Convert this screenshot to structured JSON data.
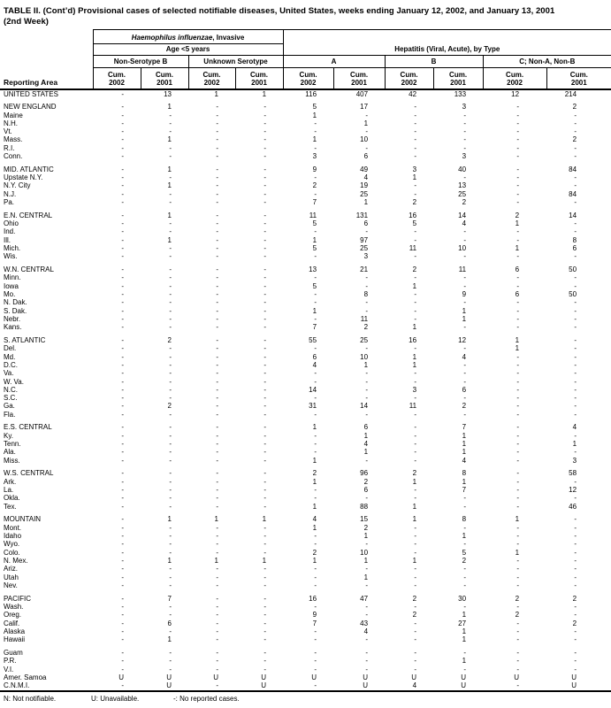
{
  "title": {
    "line1": "TABLE II. (Cont’d) Provisional cases of selected notifiable diseases, United States, weeks ending January 12, 2002, and January 13, 2001",
    "line2": "(2nd Week)"
  },
  "header": {
    "reporting_area": "Reporting Area",
    "haemophilus_italic": "Haemophilus influenzae",
    "haemophilus_rest": ", Invasive",
    "age_group": "Age <5 years",
    "hepatitis": "Hepatitis (Viral, Acute), by Type",
    "subgroups": [
      "Non-Serotype B",
      "Unknown Serotype",
      "A",
      "B",
      "C; Non-A, Non-B"
    ],
    "cum_label": "Cum.",
    "year_columns": [
      "2002",
      "2001",
      "2002",
      "2001",
      "2002",
      "2001",
      "2002",
      "2001",
      "2002",
      "2001"
    ]
  },
  "groups": [
    {
      "rows": [
        {
          "label": "UNITED STATES",
          "values": [
            "-",
            "13",
            "1",
            "1",
            "116",
            "407",
            "42",
            "133",
            "12",
            "214"
          ]
        }
      ]
    },
    {
      "rows": [
        {
          "label": "NEW ENGLAND",
          "values": [
            "-",
            "1",
            "-",
            "-",
            "5",
            "17",
            "-",
            "3",
            "-",
            "2"
          ]
        },
        {
          "label": "Maine",
          "values": [
            "-",
            "-",
            "-",
            "-",
            "1",
            "-",
            "-",
            "-",
            "-",
            "-"
          ]
        },
        {
          "label": "N.H.",
          "values": [
            "-",
            "-",
            "-",
            "-",
            "-",
            "1",
            "-",
            "-",
            "-",
            "-"
          ]
        },
        {
          "label": "Vt.",
          "values": [
            "-",
            "-",
            "-",
            "-",
            "-",
            "-",
            "-",
            "-",
            "-",
            "-"
          ]
        },
        {
          "label": "Mass.",
          "values": [
            "-",
            "1",
            "-",
            "-",
            "1",
            "10",
            "-",
            "-",
            "-",
            "2"
          ]
        },
        {
          "label": "R.I.",
          "values": [
            "-",
            "-",
            "-",
            "-",
            "-",
            "-",
            "-",
            "-",
            "-",
            "-"
          ]
        },
        {
          "label": "Conn.",
          "values": [
            "-",
            "-",
            "-",
            "-",
            "3",
            "6",
            "-",
            "3",
            "-",
            "-"
          ]
        }
      ]
    },
    {
      "rows": [
        {
          "label": "MID. ATLANTIC",
          "values": [
            "-",
            "1",
            "-",
            "-",
            "9",
            "49",
            "3",
            "40",
            "-",
            "84"
          ]
        },
        {
          "label": "Upstate N.Y.",
          "values": [
            "-",
            "-",
            "-",
            "-",
            "-",
            "4",
            "1",
            "-",
            "-",
            "-"
          ]
        },
        {
          "label": "N.Y. City",
          "values": [
            "-",
            "1",
            "-",
            "-",
            "2",
            "19",
            "-",
            "13",
            "-",
            "-"
          ]
        },
        {
          "label": "N.J.",
          "values": [
            "-",
            "-",
            "-",
            "-",
            "-",
            "25",
            "-",
            "25",
            "-",
            "84"
          ]
        },
        {
          "label": "Pa.",
          "values": [
            "-",
            "-",
            "-",
            "-",
            "7",
            "1",
            "2",
            "2",
            "-",
            "-"
          ]
        }
      ]
    },
    {
      "rows": [
        {
          "label": "E.N. CENTRAL",
          "values": [
            "-",
            "1",
            "-",
            "-",
            "11",
            "131",
            "16",
            "14",
            "2",
            "14"
          ]
        },
        {
          "label": "Ohio",
          "values": [
            "-",
            "-",
            "-",
            "-",
            "5",
            "6",
            "5",
            "4",
            "1",
            "-"
          ]
        },
        {
          "label": "Ind.",
          "values": [
            "-",
            "-",
            "-",
            "-",
            "-",
            "-",
            "-",
            "-",
            "-",
            "-"
          ]
        },
        {
          "label": "Ill.",
          "values": [
            "-",
            "1",
            "-",
            "-",
            "1",
            "97",
            "-",
            "-",
            "-",
            "8"
          ]
        },
        {
          "label": "Mich.",
          "values": [
            "-",
            "-",
            "-",
            "-",
            "5",
            "25",
            "11",
            "10",
            "1",
            "6"
          ]
        },
        {
          "label": "Wis.",
          "values": [
            "-",
            "-",
            "-",
            "-",
            "-",
            "3",
            "-",
            "-",
            "-",
            "-"
          ]
        }
      ]
    },
    {
      "rows": [
        {
          "label": "W.N. CENTRAL",
          "values": [
            "-",
            "-",
            "-",
            "-",
            "13",
            "21",
            "2",
            "11",
            "6",
            "50"
          ]
        },
        {
          "label": "Minn.",
          "values": [
            "-",
            "-",
            "-",
            "-",
            "-",
            "-",
            "-",
            "-",
            "-",
            "-"
          ]
        },
        {
          "label": "Iowa",
          "values": [
            "-",
            "-",
            "-",
            "-",
            "5",
            "-",
            "1",
            "-",
            "-",
            "-"
          ]
        },
        {
          "label": "Mo.",
          "values": [
            "-",
            "-",
            "-",
            "-",
            "-",
            "8",
            "-",
            "9",
            "6",
            "50"
          ]
        },
        {
          "label": "N. Dak.",
          "values": [
            "-",
            "-",
            "-",
            "-",
            "-",
            "-",
            "-",
            "-",
            "-",
            "-"
          ]
        },
        {
          "label": "S. Dak.",
          "values": [
            "-",
            "-",
            "-",
            "-",
            "1",
            "-",
            "-",
            "1",
            "-",
            "-"
          ]
        },
        {
          "label": "Nebr.",
          "values": [
            "-",
            "-",
            "-",
            "-",
            "-",
            "11",
            "-",
            "1",
            "-",
            "-"
          ]
        },
        {
          "label": "Kans.",
          "values": [
            "-",
            "-",
            "-",
            "-",
            "7",
            "2",
            "1",
            "-",
            "-",
            "-"
          ]
        }
      ]
    },
    {
      "rows": [
        {
          "label": "S. ATLANTIC",
          "values": [
            "-",
            "2",
            "-",
            "-",
            "55",
            "25",
            "16",
            "12",
            "1",
            "-"
          ]
        },
        {
          "label": "Del.",
          "values": [
            "-",
            "-",
            "-",
            "-",
            "-",
            "-",
            "-",
            "-",
            "1",
            "-"
          ]
        },
        {
          "label": "Md.",
          "values": [
            "-",
            "-",
            "-",
            "-",
            "6",
            "10",
            "1",
            "4",
            "-",
            "-"
          ]
        },
        {
          "label": "D.C.",
          "values": [
            "-",
            "-",
            "-",
            "-",
            "4",
            "1",
            "1",
            "-",
            "-",
            "-"
          ]
        },
        {
          "label": "Va.",
          "values": [
            "-",
            "-",
            "-",
            "-",
            "-",
            "-",
            "-",
            "-",
            "-",
            "-"
          ]
        },
        {
          "label": "W. Va.",
          "values": [
            "-",
            "-",
            "-",
            "-",
            "-",
            "-",
            "-",
            "-",
            "-",
            "-"
          ]
        },
        {
          "label": "N.C.",
          "values": [
            "-",
            "-",
            "-",
            "-",
            "14",
            "-",
            "3",
            "6",
            "-",
            "-"
          ]
        },
        {
          "label": "S.C.",
          "values": [
            "-",
            "-",
            "-",
            "-",
            "-",
            "-",
            "-",
            "-",
            "-",
            "-"
          ]
        },
        {
          "label": "Ga.",
          "values": [
            "-",
            "2",
            "-",
            "-",
            "31",
            "14",
            "11",
            "2",
            "-",
            "-"
          ]
        },
        {
          "label": "Fla.",
          "values": [
            "-",
            "-",
            "-",
            "-",
            "-",
            "-",
            "-",
            "-",
            "-",
            "-"
          ]
        }
      ]
    },
    {
      "rows": [
        {
          "label": "E.S. CENTRAL",
          "values": [
            "-",
            "-",
            "-",
            "-",
            "1",
            "6",
            "-",
            "7",
            "-",
            "4"
          ]
        },
        {
          "label": "Ky.",
          "values": [
            "-",
            "-",
            "-",
            "-",
            "-",
            "1",
            "-",
            "1",
            "-",
            "-"
          ]
        },
        {
          "label": "Tenn.",
          "values": [
            "-",
            "-",
            "-",
            "-",
            "-",
            "4",
            "-",
            "1",
            "-",
            "1"
          ]
        },
        {
          "label": "Ala.",
          "values": [
            "-",
            "-",
            "-",
            "-",
            "-",
            "1",
            "-",
            "1",
            "-",
            "-"
          ]
        },
        {
          "label": "Miss.",
          "values": [
            "-",
            "-",
            "-",
            "-",
            "1",
            "-",
            "-",
            "4",
            "-",
            "3"
          ]
        }
      ]
    },
    {
      "rows": [
        {
          "label": "W.S. CENTRAL",
          "values": [
            "-",
            "-",
            "-",
            "-",
            "2",
            "96",
            "2",
            "8",
            "-",
            "58"
          ]
        },
        {
          "label": "Ark.",
          "values": [
            "-",
            "-",
            "-",
            "-",
            "1",
            "2",
            "1",
            "1",
            "-",
            "-"
          ]
        },
        {
          "label": "La.",
          "values": [
            "-",
            "-",
            "-",
            "-",
            "-",
            "6",
            "-",
            "7",
            "-",
            "12"
          ]
        },
        {
          "label": "Okla.",
          "values": [
            "-",
            "-",
            "-",
            "-",
            "-",
            "-",
            "-",
            "-",
            "-",
            "-"
          ]
        },
        {
          "label": "Tex.",
          "values": [
            "-",
            "-",
            "-",
            "-",
            "1",
            "88",
            "1",
            "-",
            "-",
            "46"
          ]
        }
      ]
    },
    {
      "rows": [
        {
          "label": "MOUNTAIN",
          "values": [
            "-",
            "1",
            "1",
            "1",
            "4",
            "15",
            "1",
            "8",
            "1",
            "-"
          ]
        },
        {
          "label": "Mont.",
          "values": [
            "-",
            "-",
            "-",
            "-",
            "1",
            "2",
            "-",
            "-",
            "-",
            "-"
          ]
        },
        {
          "label": "Idaho",
          "values": [
            "-",
            "-",
            "-",
            "-",
            "-",
            "1",
            "-",
            "1",
            "-",
            "-"
          ]
        },
        {
          "label": "Wyo.",
          "values": [
            "-",
            "-",
            "-",
            "-",
            "-",
            "-",
            "-",
            "-",
            "-",
            "-"
          ]
        },
        {
          "label": "Colo.",
          "values": [
            "-",
            "-",
            "-",
            "-",
            "2",
            "10",
            "-",
            "5",
            "1",
            "-"
          ]
        },
        {
          "label": "N. Mex.",
          "values": [
            "-",
            "1",
            "1",
            "1",
            "1",
            "1",
            "1",
            "2",
            "-",
            "-"
          ]
        },
        {
          "label": "Ariz.",
          "values": [
            "-",
            "-",
            "-",
            "-",
            "-",
            "-",
            "-",
            "-",
            "-",
            "-"
          ]
        },
        {
          "label": "Utah",
          "values": [
            "-",
            "-",
            "-",
            "-",
            "-",
            "1",
            "-",
            "-",
            "-",
            "-"
          ]
        },
        {
          "label": "Nev.",
          "values": [
            "-",
            "-",
            "-",
            "-",
            "-",
            "-",
            "-",
            "-",
            "-",
            "-"
          ]
        }
      ]
    },
    {
      "rows": [
        {
          "label": "PACIFIC",
          "values": [
            "-",
            "7",
            "-",
            "-",
            "16",
            "47",
            "2",
            "30",
            "2",
            "2"
          ]
        },
        {
          "label": "Wash.",
          "values": [
            "-",
            "-",
            "-",
            "-",
            "-",
            "-",
            "-",
            "-",
            "-",
            "-"
          ]
        },
        {
          "label": "Oreg.",
          "values": [
            "-",
            "-",
            "-",
            "-",
            "9",
            "-",
            "2",
            "1",
            "2",
            "-"
          ]
        },
        {
          "label": "Calif.",
          "values": [
            "-",
            "6",
            "-",
            "-",
            "7",
            "43",
            "-",
            "27",
            "-",
            "2"
          ]
        },
        {
          "label": "Alaska",
          "values": [
            "-",
            "-",
            "-",
            "-",
            "-",
            "4",
            "-",
            "1",
            "-",
            "-"
          ]
        },
        {
          "label": "Hawaii",
          "values": [
            "-",
            "1",
            "-",
            "-",
            "-",
            "-",
            "-",
            "1",
            "-",
            "-"
          ]
        }
      ]
    },
    {
      "rows": [
        {
          "label": "Guam",
          "values": [
            "-",
            "-",
            "-",
            "-",
            "-",
            "-",
            "-",
            "-",
            "-",
            "-"
          ]
        },
        {
          "label": "P.R.",
          "values": [
            "-",
            "-",
            "-",
            "-",
            "-",
            "-",
            "-",
            "1",
            "-",
            "-"
          ]
        },
        {
          "label": "V.I.",
          "values": [
            "-",
            "-",
            "-",
            "-",
            "-",
            "-",
            "-",
            "-",
            "-",
            "-"
          ]
        },
        {
          "label": "Amer. Samoa",
          "values": [
            "U",
            "U",
            "U",
            "U",
            "U",
            "U",
            "U",
            "U",
            "U",
            "U"
          ]
        },
        {
          "label": "C.N.M.I.",
          "values": [
            "-",
            "U",
            "-",
            "U",
            "-",
            "U",
            "4",
            "U",
            "-",
            "U"
          ]
        }
      ]
    }
  ],
  "footnotes": [
    "N: Not notifiable.",
    "U: Unavailable.",
    "-: No reported cases."
  ]
}
